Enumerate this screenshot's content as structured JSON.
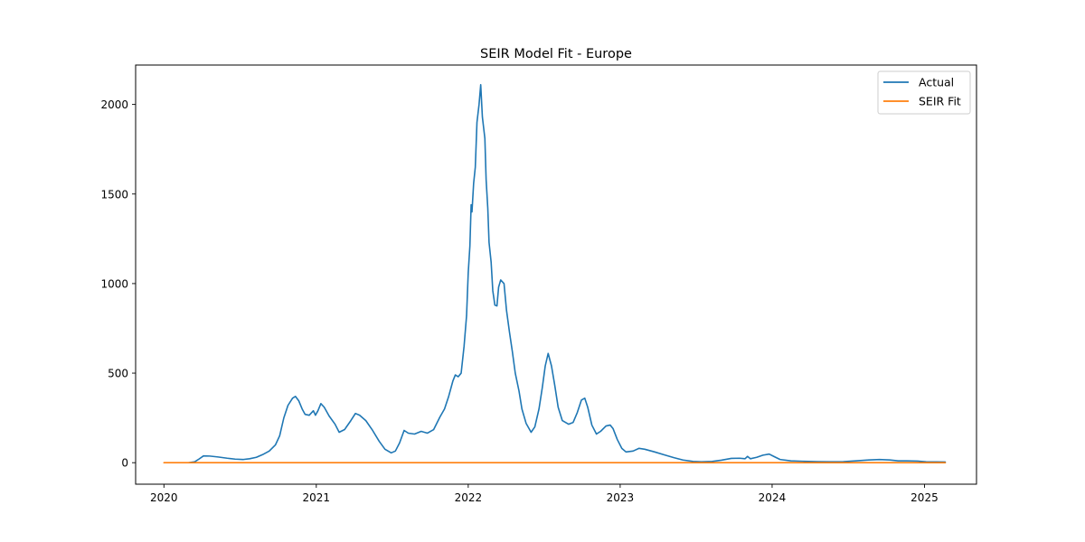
{
  "chart_data": {
    "type": "line",
    "title": "SEIR Model Fit - Europe",
    "xlabel": "",
    "ylabel": "",
    "x_axis": "date",
    "xlim": [
      "2019-10-25",
      "2025-05-06"
    ],
    "ylim": [
      -120,
      2220
    ],
    "x_ticks": [
      "2020-01-01",
      "2021-01-01",
      "2022-01-01",
      "2023-01-01",
      "2024-01-01",
      "2025-01-01"
    ],
    "x_tick_labels": [
      "2020",
      "2021",
      "2022",
      "2023",
      "2024",
      "2025"
    ],
    "y_ticks": [
      0,
      500,
      1000,
      1500,
      2000
    ],
    "y_tick_labels": [
      "0",
      "500",
      "1000",
      "1500",
      "2000"
    ],
    "grid": false,
    "legend_position": "top-right",
    "series": [
      {
        "name": "Actual",
        "color": "#1f77b4",
        "points": [
          [
            "2020-03-01",
            0
          ],
          [
            "2020-03-15",
            5
          ],
          [
            "2020-03-25",
            20
          ],
          [
            "2020-04-05",
            38
          ],
          [
            "2020-04-20",
            37
          ],
          [
            "2020-05-10",
            32
          ],
          [
            "2020-06-01",
            25
          ],
          [
            "2020-06-20",
            20
          ],
          [
            "2020-07-10",
            18
          ],
          [
            "2020-07-25",
            22
          ],
          [
            "2020-08-10",
            30
          ],
          [
            "2020-08-25",
            45
          ],
          [
            "2020-09-10",
            65
          ],
          [
            "2020-09-25",
            100
          ],
          [
            "2020-10-05",
            150
          ],
          [
            "2020-10-15",
            250
          ],
          [
            "2020-10-25",
            320
          ],
          [
            "2020-11-05",
            360
          ],
          [
            "2020-11-12",
            370
          ],
          [
            "2020-11-20",
            345
          ],
          [
            "2020-11-28",
            300
          ],
          [
            "2020-12-05",
            270
          ],
          [
            "2020-12-15",
            265
          ],
          [
            "2020-12-25",
            290
          ],
          [
            "2020-12-30",
            265
          ],
          [
            "2021-01-05",
            290
          ],
          [
            "2021-01-12",
            330
          ],
          [
            "2021-01-20",
            310
          ],
          [
            "2021-02-01",
            260
          ],
          [
            "2021-02-15",
            215
          ],
          [
            "2021-02-25",
            170
          ],
          [
            "2021-03-10",
            185
          ],
          [
            "2021-03-25",
            235
          ],
          [
            "2021-04-05",
            275
          ],
          [
            "2021-04-15",
            265
          ],
          [
            "2021-04-30",
            235
          ],
          [
            "2021-05-15",
            185
          ],
          [
            "2021-06-01",
            120
          ],
          [
            "2021-06-15",
            75
          ],
          [
            "2021-06-30",
            55
          ],
          [
            "2021-07-10",
            65
          ],
          [
            "2021-07-20",
            110
          ],
          [
            "2021-07-31",
            180
          ],
          [
            "2021-08-10",
            165
          ],
          [
            "2021-08-25",
            160
          ],
          [
            "2021-09-10",
            175
          ],
          [
            "2021-09-25",
            165
          ],
          [
            "2021-10-10",
            185
          ],
          [
            "2021-10-25",
            255
          ],
          [
            "2021-11-05",
            300
          ],
          [
            "2021-11-15",
            370
          ],
          [
            "2021-11-25",
            455
          ],
          [
            "2021-12-01",
            490
          ],
          [
            "2021-12-08",
            480
          ],
          [
            "2021-12-15",
            500
          ],
          [
            "2021-12-22",
            650
          ],
          [
            "2021-12-28",
            820
          ],
          [
            "2022-01-01",
            1060
          ],
          [
            "2022-01-05",
            1210
          ],
          [
            "2022-01-08",
            1440
          ],
          [
            "2022-01-10",
            1400
          ],
          [
            "2022-01-14",
            1560
          ],
          [
            "2022-01-18",
            1650
          ],
          [
            "2022-01-22",
            1900
          ],
          [
            "2022-01-27",
            2000
          ],
          [
            "2022-01-31",
            2110
          ],
          [
            "2022-02-04",
            1930
          ],
          [
            "2022-02-10",
            1810
          ],
          [
            "2022-02-13",
            1580
          ],
          [
            "2022-02-17",
            1420
          ],
          [
            "2022-02-20",
            1230
          ],
          [
            "2022-02-25",
            1120
          ],
          [
            "2022-03-01",
            960
          ],
          [
            "2022-03-06",
            880
          ],
          [
            "2022-03-11",
            875
          ],
          [
            "2022-03-15",
            980
          ],
          [
            "2022-03-20",
            1020
          ],
          [
            "2022-03-28",
            1000
          ],
          [
            "2022-04-03",
            850
          ],
          [
            "2022-04-10",
            730
          ],
          [
            "2022-04-17",
            620
          ],
          [
            "2022-04-24",
            500
          ],
          [
            "2022-05-03",
            400
          ],
          [
            "2022-05-10",
            300
          ],
          [
            "2022-05-20",
            220
          ],
          [
            "2022-06-01",
            170
          ],
          [
            "2022-06-10",
            200
          ],
          [
            "2022-06-20",
            300
          ],
          [
            "2022-06-28",
            420
          ],
          [
            "2022-07-05",
            540
          ],
          [
            "2022-07-12",
            610
          ],
          [
            "2022-07-20",
            540
          ],
          [
            "2022-07-28",
            430
          ],
          [
            "2022-08-05",
            310
          ],
          [
            "2022-08-15",
            235
          ],
          [
            "2022-08-30",
            215
          ],
          [
            "2022-09-10",
            225
          ],
          [
            "2022-09-20",
            280
          ],
          [
            "2022-09-30",
            350
          ],
          [
            "2022-10-08",
            360
          ],
          [
            "2022-10-15",
            310
          ],
          [
            "2022-10-25",
            210
          ],
          [
            "2022-11-05",
            160
          ],
          [
            "2022-11-15",
            175
          ],
          [
            "2022-11-28",
            205
          ],
          [
            "2022-12-08",
            210
          ],
          [
            "2022-12-15",
            190
          ],
          [
            "2022-12-25",
            130
          ],
          [
            "2023-01-05",
            80
          ],
          [
            "2023-01-15",
            60
          ],
          [
            "2023-02-01",
            65
          ],
          [
            "2023-02-15",
            80
          ],
          [
            "2023-03-01",
            75
          ],
          [
            "2023-03-25",
            60
          ],
          [
            "2023-04-15",
            45
          ],
          [
            "2023-05-10",
            28
          ],
          [
            "2023-06-01",
            15
          ],
          [
            "2023-06-25",
            7
          ],
          [
            "2023-07-15",
            5
          ],
          [
            "2023-08-10",
            7
          ],
          [
            "2023-09-01",
            14
          ],
          [
            "2023-09-25",
            24
          ],
          [
            "2023-10-15",
            25
          ],
          [
            "2023-10-28",
            22
          ],
          [
            "2023-11-03",
            35
          ],
          [
            "2023-11-10",
            22
          ],
          [
            "2023-11-25",
            30
          ],
          [
            "2023-12-10",
            42
          ],
          [
            "2023-12-25",
            48
          ],
          [
            "2024-01-05",
            35
          ],
          [
            "2024-01-20",
            18
          ],
          [
            "2024-02-15",
            10
          ],
          [
            "2024-03-15",
            8
          ],
          [
            "2024-04-20",
            6
          ],
          [
            "2024-05-20",
            5
          ],
          [
            "2024-06-20",
            6
          ],
          [
            "2024-07-20",
            10
          ],
          [
            "2024-08-20",
            15
          ],
          [
            "2024-09-15",
            18
          ],
          [
            "2024-10-10",
            15
          ],
          [
            "2024-10-30",
            10
          ],
          [
            "2024-11-20",
            10
          ],
          [
            "2024-12-15",
            9
          ],
          [
            "2025-01-05",
            5
          ],
          [
            "2025-02-20",
            4
          ]
        ]
      },
      {
        "name": "SEIR Fit",
        "color": "#ff7f0e",
        "points": [
          [
            "2020-01-01",
            0
          ],
          [
            "2025-02-20",
            0
          ]
        ]
      }
    ]
  }
}
